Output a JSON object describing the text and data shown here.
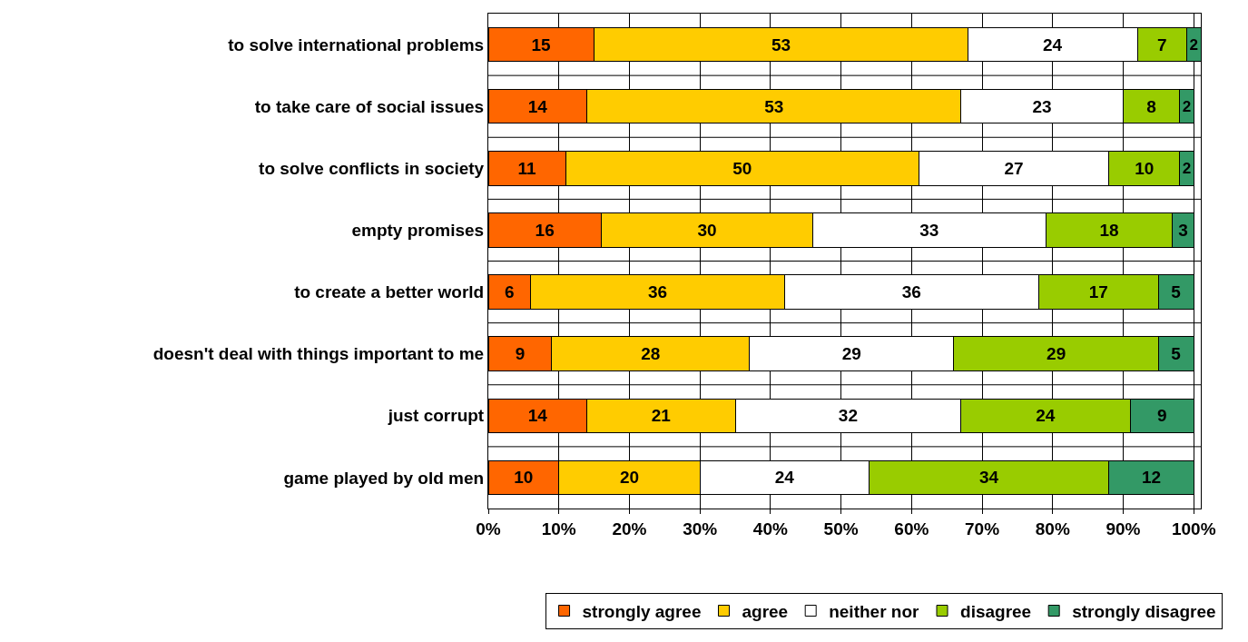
{
  "chart_data": {
    "type": "bar",
    "orientation": "horizontal",
    "stacked": true,
    "data_labels": true,
    "grid": true,
    "legend": "bottom right",
    "categories": [
      "to solve international problems",
      "to take care of social issues",
      "to solve conflicts in society",
      "empty promises",
      "to create a better world",
      "doesn't deal with things important to me",
      "just corrupt",
      "game played by old men"
    ],
    "series": [
      {
        "name": "strongly agree",
        "color": "#ff6600",
        "values": [
          15,
          14,
          11,
          16,
          6,
          9,
          14,
          10
        ]
      },
      {
        "name": "agree",
        "color": "#ffcc00",
        "values": [
          53,
          53,
          50,
          30,
          36,
          28,
          21,
          20
        ]
      },
      {
        "name": "neither nor",
        "color": "#ffffff",
        "values": [
          24,
          23,
          27,
          33,
          36,
          29,
          32,
          24
        ]
      },
      {
        "name": "disagree",
        "color": "#99cc00",
        "values": [
          7,
          8,
          10,
          18,
          17,
          29,
          24,
          34
        ]
      },
      {
        "name": "strongly disagree",
        "color": "#339966",
        "values": [
          2,
          2,
          2,
          3,
          5,
          5,
          9,
          12
        ]
      }
    ],
    "xlim": [
      0,
      101
    ],
    "xticks": [
      {
        "value": 0,
        "label": "0%"
      },
      {
        "value": 10,
        "label": "10%"
      },
      {
        "value": 20,
        "label": "20%"
      },
      {
        "value": 30,
        "label": "30%"
      },
      {
        "value": 40,
        "label": "40%"
      },
      {
        "value": 50,
        "label": "50%"
      },
      {
        "value": 60,
        "label": "60%"
      },
      {
        "value": 70,
        "label": "70%"
      },
      {
        "value": 80,
        "label": "80%"
      },
      {
        "value": 90,
        "label": "90%"
      },
      {
        "value": 100,
        "label": "100%"
      }
    ]
  }
}
